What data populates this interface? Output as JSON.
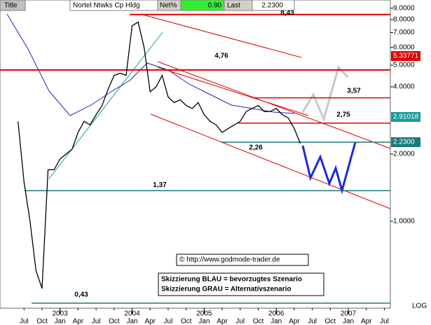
{
  "header": {
    "title": "Title",
    "name": "Nortel Ntwks Cp Hldg",
    "net_label": "Net%",
    "net_value": "0.90",
    "last_label": "Last",
    "last_value": "2.2300"
  },
  "chart_data": {
    "type": "line",
    "log_scale": true,
    "x": [
      "2002-06",
      "2002-07",
      "2002-08",
      "2002-09",
      "2002-10",
      "2002-11",
      "2002-12",
      "2003-01",
      "2003-02",
      "2003-03",
      "2003-04",
      "2003-05",
      "2003-06",
      "2003-07",
      "2003-08",
      "2003-09",
      "2003-10",
      "2003-11",
      "2003-12",
      "2004-01",
      "2004-02",
      "2004-03",
      "2004-04",
      "2004-05",
      "2004-06",
      "2004-07",
      "2004-08",
      "2004-09",
      "2004-10",
      "2004-11",
      "2004-12",
      "2005-01",
      "2005-02",
      "2005-03",
      "2005-04",
      "2005-05",
      "2005-06",
      "2005-07",
      "2005-08",
      "2005-09",
      "2005-10",
      "2005-11",
      "2005-12",
      "2006-01",
      "2006-02",
      "2006-03",
      "2006-04",
      "2006-05"
    ],
    "series": [
      {
        "color": "#000000",
        "values": [
          2.8,
          1.5,
          1.0,
          0.6,
          0.5,
          1.7,
          1.7,
          1.9,
          2.0,
          2.1,
          2.5,
          2.8,
          2.7,
          3.0,
          3.3,
          3.9,
          4.5,
          4.6,
          4.5,
          7.5,
          7.8,
          6.0,
          3.8,
          4.0,
          4.5,
          3.6,
          3.4,
          3.5,
          3.3,
          3.2,
          3.4,
          3.0,
          2.8,
          2.7,
          2.5,
          2.6,
          2.7,
          2.8,
          3.1,
          3.2,
          3.3,
          3.1,
          3.1,
          3.2,
          3.0,
          2.9,
          2.6,
          2.23
        ]
      }
    ],
    "xlim": [
      "2002-03",
      "2007-08"
    ],
    "ylim": [
      0.408,
      9.79
    ],
    "yticks": [
      {
        "value": 9,
        "label": "9.0000"
      },
      {
        "value": 8,
        "label": "8.0000"
      },
      {
        "value": 7,
        "label": "7.0000"
      },
      {
        "value": 6,
        "label": "6.0000"
      },
      {
        "value": 5,
        "label": "5.0000"
      },
      {
        "value": 4,
        "label": "4.0000"
      },
      {
        "value": 2,
        "label": "2.0000"
      },
      {
        "value": 1,
        "label": "1.0000"
      }
    ],
    "xticks": [
      {
        "value": "2002-07",
        "label": "Jul"
      },
      {
        "value": "2002-10",
        "label": "Oct"
      },
      {
        "value": "2003-01",
        "label": "Jan"
      },
      {
        "value": "2003-04",
        "label": "Apr"
      },
      {
        "value": "2003-07",
        "label": "Jul"
      },
      {
        "value": "2003-10",
        "label": "Oct"
      },
      {
        "value": "2004-01",
        "label": "Jan"
      },
      {
        "value": "2004-04",
        "label": "Apr"
      },
      {
        "value": "2004-07",
        "label": "Jul"
      },
      {
        "value": "2004-10",
        "label": "Oct"
      },
      {
        "value": "2005-01",
        "label": "Jan"
      },
      {
        "value": "2005-04",
        "label": "Apr"
      },
      {
        "value": "2005-07",
        "label": "Jul"
      },
      {
        "value": "2005-10",
        "label": "Oct"
      },
      {
        "value": "2006-01",
        "label": "Jan"
      },
      {
        "value": "2006-04",
        "label": "Apr"
      },
      {
        "value": "2006-07",
        "label": "Jul"
      },
      {
        "value": "2006-10",
        "label": "Oct"
      },
      {
        "value": "2007-01",
        "label": "Jan"
      },
      {
        "value": "2007-04",
        "label": "Apr"
      },
      {
        "value": "2007-07",
        "label": "Jul"
      }
    ],
    "year_labels": [
      {
        "value": "2003-01",
        "label": "2003"
      },
      {
        "value": "2004-01",
        "label": "2004"
      },
      {
        "value": "2005-01",
        "label": "2005"
      },
      {
        "value": "2006-01",
        "label": "2006"
      },
      {
        "value": "2007-01",
        "label": "2007"
      }
    ],
    "levels": [
      {
        "value": 8.43,
        "label": "8,43",
        "color": "#e00000"
      },
      {
        "value": 4.76,
        "label": "4,76",
        "color": "#e00000"
      },
      {
        "value": 3.57,
        "label": "3,57",
        "color": "#e00000"
      },
      {
        "value": 2.75,
        "label": "2,75",
        "color": "#e00000"
      },
      {
        "value": 2.26,
        "label": "2,26",
        "color": "#1a7a7a"
      },
      {
        "value": 1.37,
        "label": "1,37",
        "color": "#1a7a7a"
      },
      {
        "value": 0.43,
        "label": "0,43",
        "color": "#1a7a7a"
      }
    ],
    "price_tags": [
      {
        "label": "5.33771",
        "color": "#e00000"
      },
      {
        "label": "2.91018",
        "color": "#1a9a9a"
      },
      {
        "label": "2.2300",
        "color": "#1a7a7a"
      }
    ],
    "scale_label": "LOG",
    "copyright": "© http://www.godmode-trader.de",
    "legend": [
      "Skizzierung BLAU = bevorzugtes Szenario",
      "Skizzierung GRAU = Alternativszenario"
    ]
  }
}
